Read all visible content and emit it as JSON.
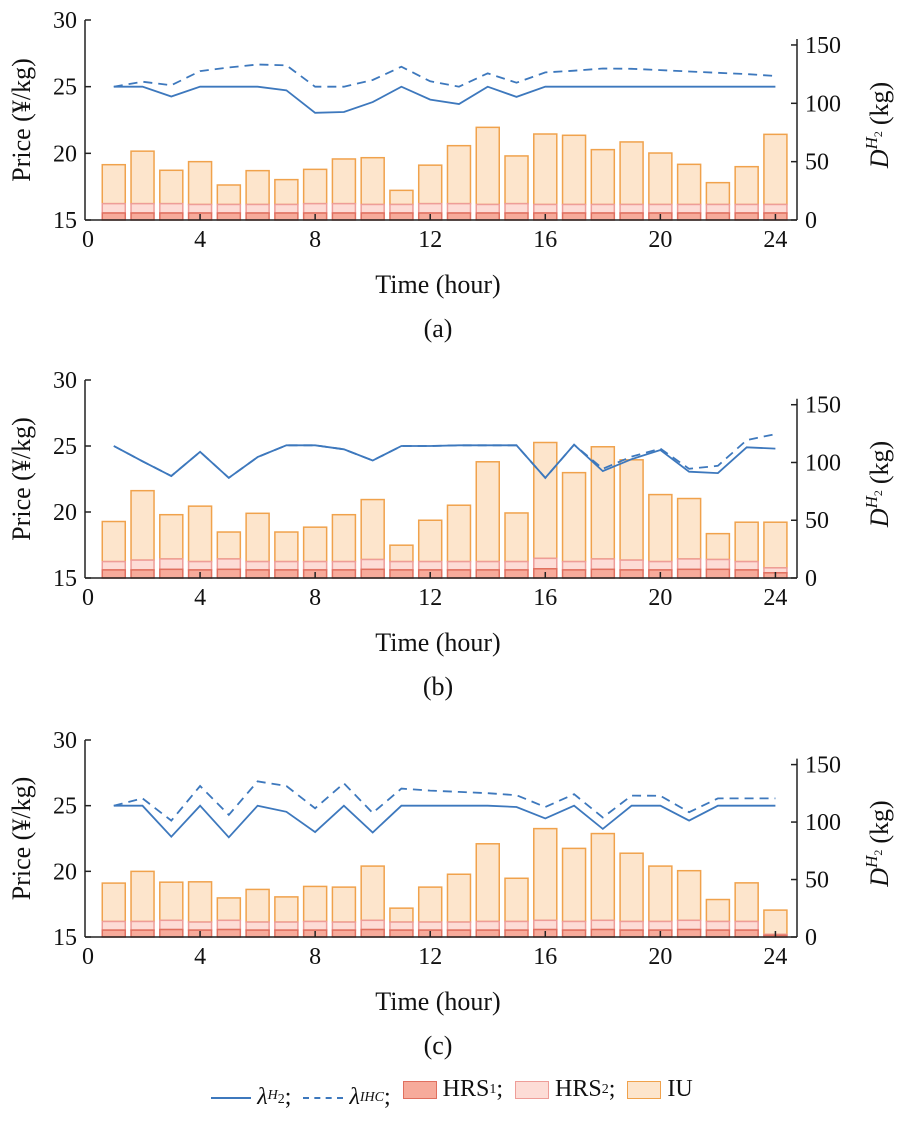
{
  "colors": {
    "line": "#3d78bd",
    "hrs1_fill": "#f7ab9b",
    "hrs1_edge": "#e0705f",
    "hrs2_fill": "#fddcd6",
    "hrs2_edge": "#ee9d98",
    "iu_fill": "#fde5cc",
    "iu_edge": "#f0a24c"
  },
  "legend": {
    "lh2": {
      "base": "λ",
      "sup": "H",
      "supsub": "2",
      "sep": ";"
    },
    "lihc": {
      "base": "λ",
      "sup": "IHC",
      "sep": ";"
    },
    "hrs1": {
      "base": "HRS",
      "sub": "1",
      "sep": ";"
    },
    "hrs2": {
      "base": "HRS",
      "sub": "2",
      "sep": ";"
    },
    "iu": {
      "base": "IU"
    }
  },
  "chart_data": [
    {
      "type": "bar+line",
      "caption": "(a)",
      "xlabel": "Time (hour)",
      "ylabel": "Price (¥/kg)",
      "y2label": {
        "base": "D",
        "sup": "H",
        "supsub": "2",
        "unit": "(kg)"
      },
      "xlim": [
        0,
        24.75
      ],
      "xticks": [
        0,
        4,
        8,
        12,
        16,
        20,
        24
      ],
      "ylim": [
        15,
        30
      ],
      "yticks": [
        15,
        20,
        25,
        30
      ],
      "y2lim": [
        0,
        171.4
      ],
      "y2ticks": [
        0,
        50,
        100,
        150
      ],
      "x": [
        1,
        2,
        3,
        4,
        5,
        6,
        7,
        8,
        9,
        10,
        11,
        12,
        13,
        14,
        15,
        16,
        17,
        18,
        19,
        20,
        21,
        22,
        23,
        24
      ],
      "lambda_H2": [
        25,
        25,
        24.26,
        25,
        25,
        25,
        24.73,
        23.04,
        23.1,
        23.84,
        25,
        24.03,
        23.7,
        25,
        24.23,
        25,
        25,
        25,
        25,
        25,
        25,
        25,
        25,
        25
      ],
      "lambda_IHC": [
        25,
        25.37,
        25.1,
        26.17,
        26.44,
        26.66,
        26.6,
        25,
        25,
        25.5,
        26.5,
        25.4,
        25.0,
        26.0,
        25.3,
        26.07,
        26.2,
        26.36,
        26.34,
        26.24,
        26.14,
        26.04,
        25.94,
        25.8
      ],
      "HRS1": [
        6,
        6,
        6,
        6,
        6,
        6,
        6,
        6,
        6,
        6,
        6,
        6,
        6,
        6,
        6,
        6,
        6,
        6,
        6,
        6,
        6,
        6,
        6,
        6
      ],
      "HRS2": [
        8,
        8,
        8,
        7.3,
        7.3,
        7.3,
        7.3,
        8,
        8,
        7.3,
        7.3,
        8,
        8,
        7.3,
        8,
        7.3,
        7.3,
        7.3,
        7.3,
        7.3,
        7.3,
        7.3,
        7.3,
        7.3
      ],
      "total": [
        47.4,
        59,
        42.6,
        50,
        30,
        42.3,
        34.6,
        43.4,
        52.3,
        53.4,
        25.4,
        47,
        63.7,
        79.4,
        54.9,
        73.7,
        72.6,
        60.3,
        66.9,
        57.4,
        47.7,
        32,
        45.7,
        73.4
      ]
    },
    {
      "type": "bar+line",
      "caption": "(b)",
      "xlabel": "Time (hour)",
      "ylabel": "Price (¥/kg)",
      "y2label": {
        "base": "D",
        "sup": "H",
        "supsub": "2",
        "unit": "(kg)"
      },
      "xlim": [
        0,
        24.75
      ],
      "xticks": [
        0,
        4,
        8,
        12,
        16,
        20,
        24
      ],
      "ylim": [
        15,
        30
      ],
      "yticks": [
        15,
        20,
        25,
        30
      ],
      "y2lim": [
        0,
        171.4
      ],
      "y2ticks": [
        0,
        50,
        100,
        150
      ],
      "x": [
        1,
        2,
        3,
        4,
        5,
        6,
        7,
        8,
        9,
        10,
        11,
        12,
        13,
        14,
        15,
        16,
        17,
        18,
        19,
        20,
        21,
        22,
        23,
        24
      ],
      "lambda_H2": [
        25,
        23.84,
        22.73,
        24.56,
        22.58,
        24.16,
        25.05,
        25.05,
        24.75,
        23.9,
        25,
        25,
        25.05,
        25.05,
        25.05,
        22.58,
        25.1,
        23.1,
        24.0,
        24.7,
        23.05,
        22.95,
        24.9,
        24.8
      ],
      "lambda_IHC": [
        25,
        23.84,
        22.73,
        24.56,
        22.58,
        24.16,
        25.05,
        25.05,
        24.75,
        23.9,
        25,
        25,
        25.05,
        25.05,
        25.05,
        22.58,
        25.1,
        23.27,
        24.2,
        24.8,
        23.27,
        23.5,
        25.45,
        25.9
      ],
      "HRS1": [
        7,
        7,
        7.5,
        7,
        7.5,
        7,
        7,
        7,
        7,
        7.5,
        7,
        7,
        7,
        7,
        7,
        8,
        7,
        7.5,
        7,
        7,
        7.5,
        7.5,
        7,
        4.5
      ],
      "HRS2": [
        7.2,
        8.5,
        9,
        7.2,
        9,
        7.2,
        7.2,
        7.2,
        7.2,
        8.5,
        7.2,
        7.2,
        7.2,
        7.2,
        7.2,
        9,
        7.2,
        9,
        8.5,
        7.2,
        9,
        8.5,
        7.2,
        4.3
      ],
      "total": [
        48.9,
        75.6,
        54.8,
        62.2,
        39.8,
        56,
        39.8,
        44,
        54.8,
        67.9,
        28.4,
        50,
        63,
        100.6,
        56.3,
        117.3,
        91.2,
        113.6,
        102.3,
        72.2,
        68.8,
        38.4,
        48.3,
        48.3
      ]
    },
    {
      "type": "bar+line",
      "caption": "(c)",
      "xlabel": "Time (hour)",
      "ylabel": "Price (¥/kg)",
      "y2label": {
        "base": "D",
        "sup": "H",
        "supsub": "2",
        "unit": "(kg)"
      },
      "xlim": [
        0,
        24.75
      ],
      "xticks": [
        0,
        4,
        8,
        12,
        16,
        20,
        24
      ],
      "ylim": [
        15,
        30
      ],
      "yticks": [
        15,
        20,
        25,
        30
      ],
      "y2lim": [
        0,
        171.4
      ],
      "y2ticks": [
        0,
        50,
        100,
        150
      ],
      "x": [
        1,
        2,
        3,
        4,
        5,
        6,
        7,
        8,
        9,
        10,
        11,
        12,
        13,
        14,
        15,
        16,
        17,
        18,
        19,
        20,
        21,
        22,
        23,
        24
      ],
      "lambda_H2": [
        25,
        25,
        22.64,
        25,
        22.59,
        25,
        24.53,
        22.99,
        25,
        22.96,
        25,
        25,
        25,
        25,
        24.9,
        24.03,
        25,
        23.23,
        25,
        25,
        23.86,
        25,
        25,
        25
      ],
      "lambda_IHC": [
        25,
        25.55,
        23.86,
        26.5,
        24.3,
        26.85,
        26.5,
        24.8,
        26.7,
        24.45,
        26.3,
        26.15,
        26.05,
        25.95,
        25.8,
        24.9,
        25.87,
        24.1,
        25.77,
        25.75,
        24.5,
        25.55,
        25.55,
        25.55
      ],
      "HRS1": [
        6,
        6,
        6.5,
        6,
        6.5,
        6,
        6,
        6,
        6,
        6.5,
        6,
        6,
        6,
        6,
        6,
        6.5,
        6,
        6.5,
        6,
        6,
        6.5,
        6,
        6,
        1.5
      ],
      "HRS2": [
        7.5,
        7.5,
        8,
        7,
        8,
        7,
        7,
        7.5,
        7,
        8,
        7,
        7,
        7,
        7.5,
        7.5,
        8,
        7.5,
        8,
        7.5,
        7.5,
        8,
        7.5,
        7.5,
        0.8
      ],
      "total": [
        46.9,
        57.1,
        47.7,
        48,
        34,
        41.4,
        34.9,
        44,
        43.4,
        61.7,
        25.1,
        43.4,
        54.6,
        81.1,
        51.1,
        94.3,
        77.1,
        90,
        72.9,
        61.7,
        57.7,
        32.6,
        47.1,
        23.4
      ]
    }
  ]
}
